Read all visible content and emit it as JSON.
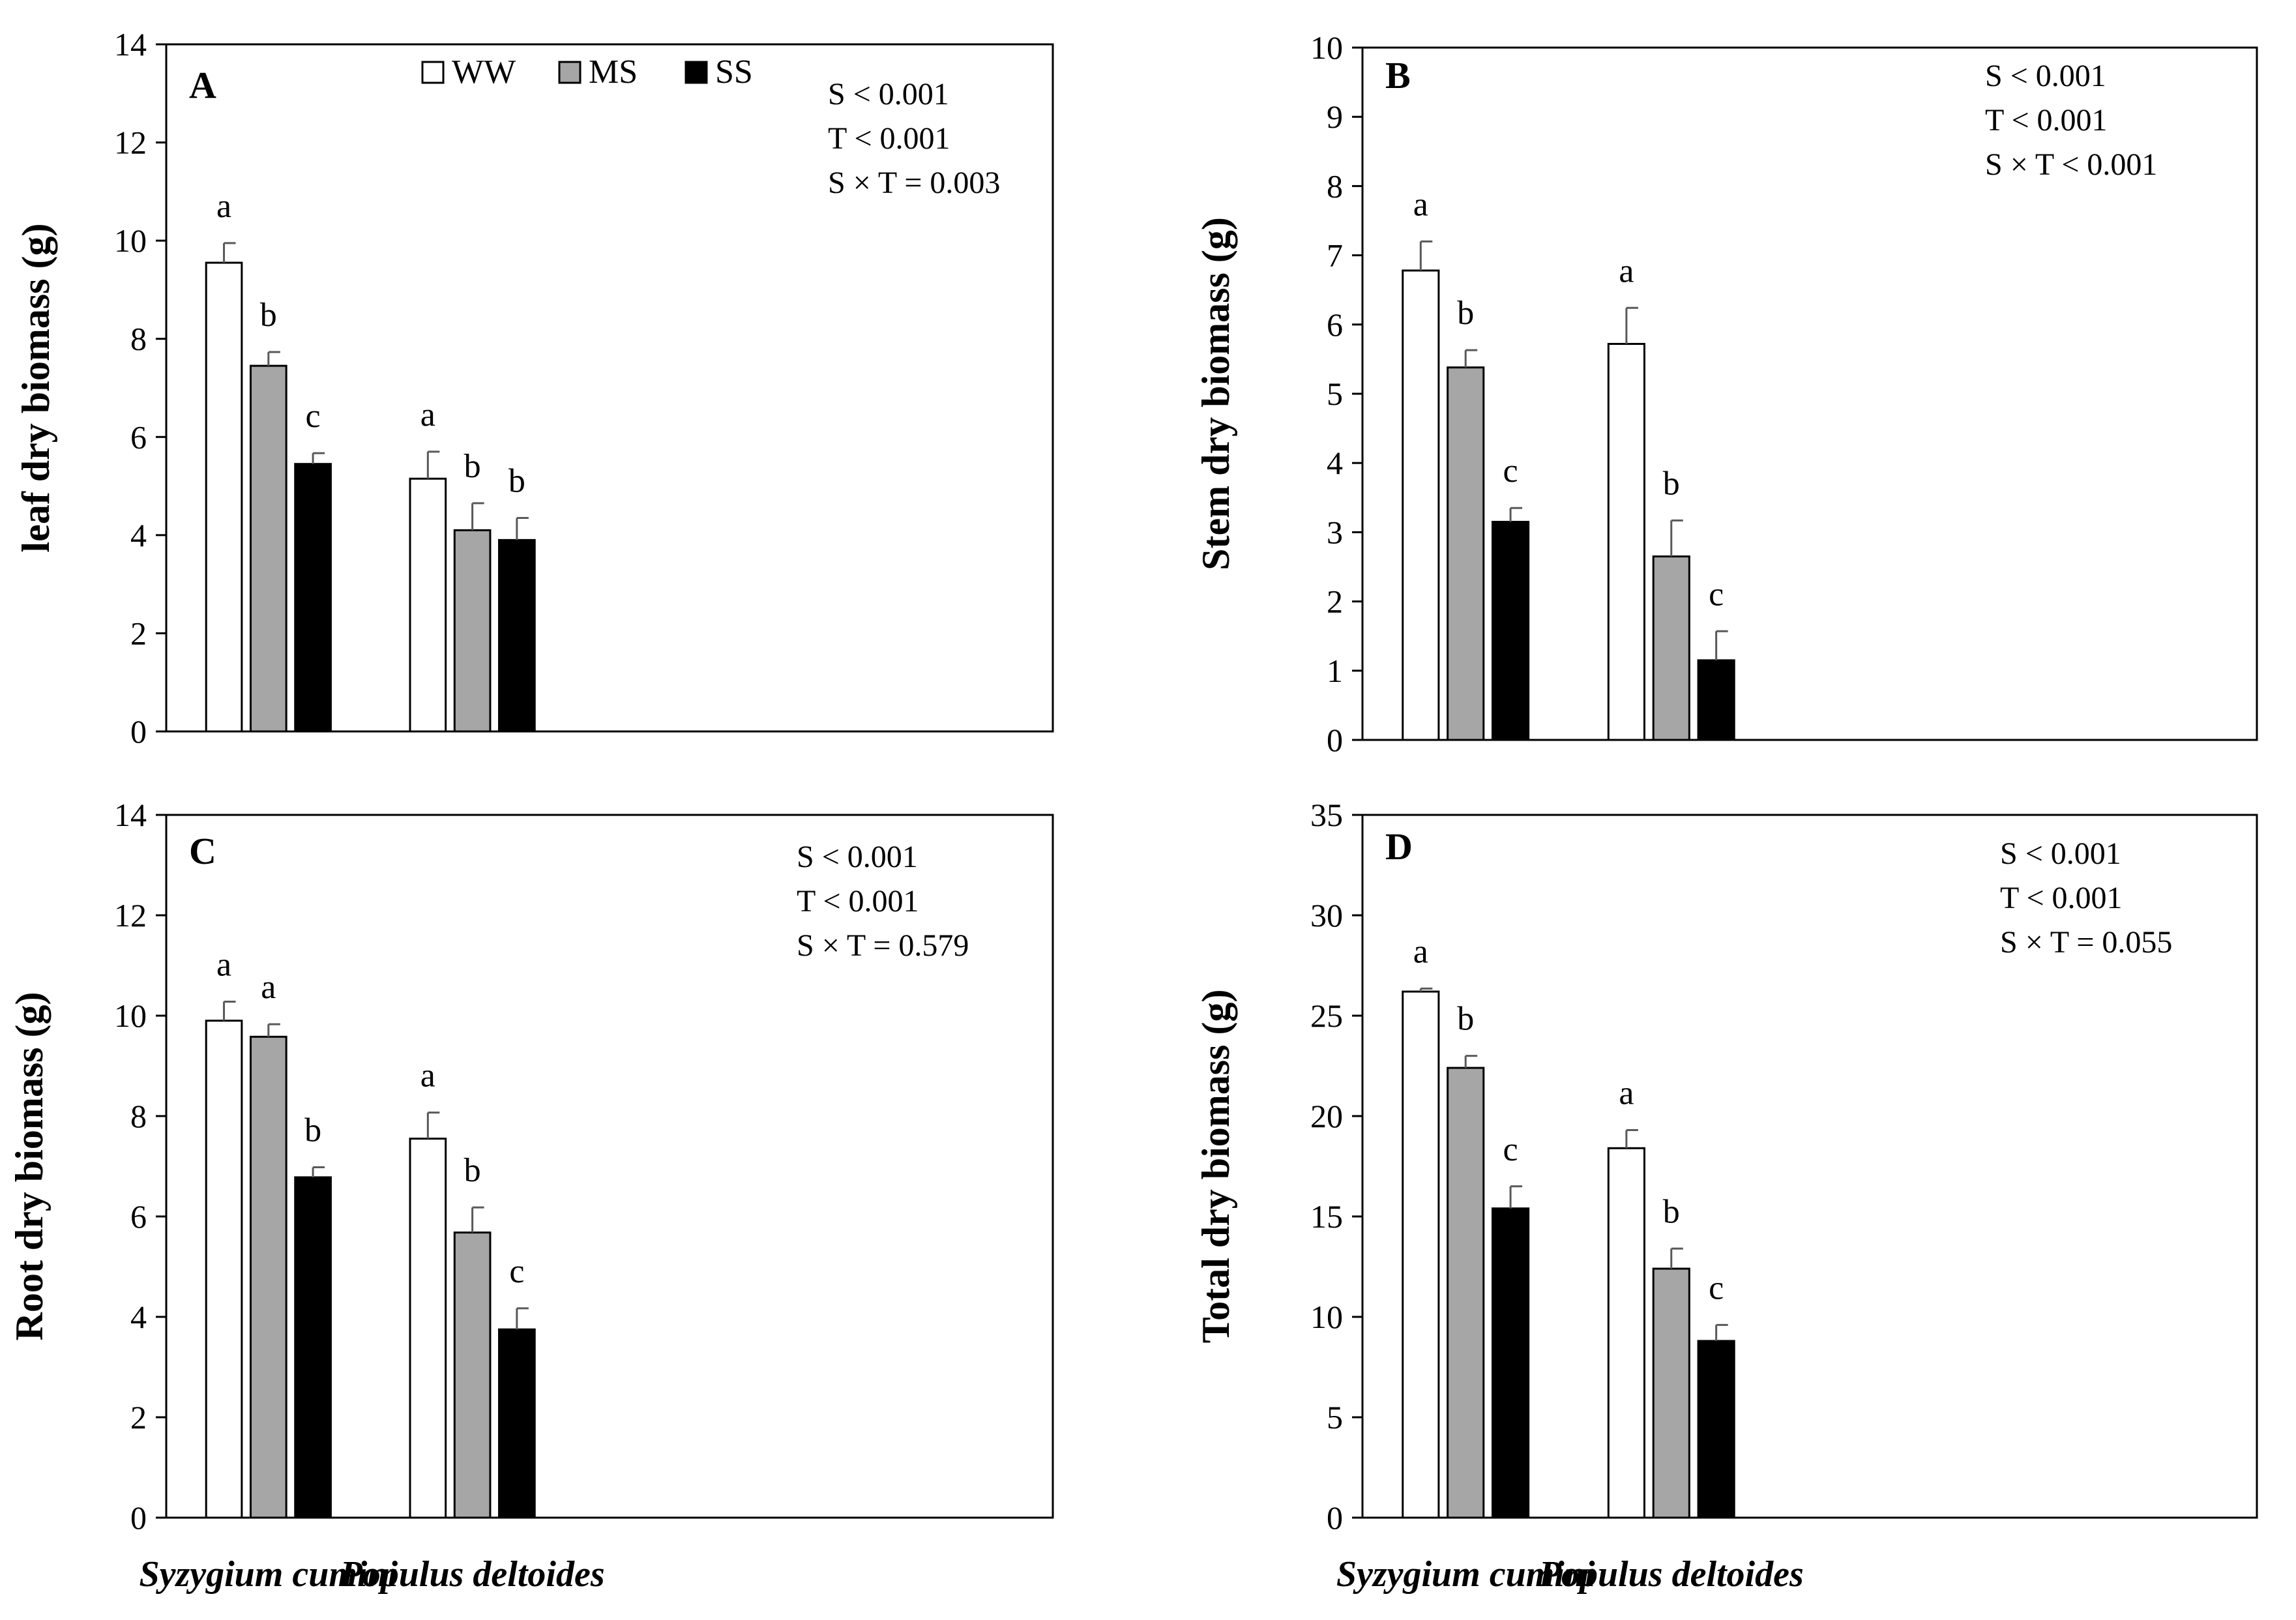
{
  "colors": {
    "WW": "#ffffff",
    "MS": "#a6a6a6",
    "SS": "#000000",
    "axis": "#000000",
    "error_bar": "#595959"
  },
  "legend": {
    "items": [
      {
        "name": "WW",
        "color": "#ffffff"
      },
      {
        "name": "MS",
        "color": "#a6a6a6"
      },
      {
        "name": "SS",
        "color": "#000000"
      }
    ]
  },
  "chart_data": [
    {
      "panel": "A",
      "type": "bar",
      "ylabel": "leaf dry biomass (g)",
      "ylim": [
        0,
        14
      ],
      "yticks": [
        0,
        2,
        4,
        6,
        8,
        10,
        12,
        14
      ],
      "categories": [
        "Syzygium cumini",
        "Populus deltoides"
      ],
      "series": [
        {
          "name": "WW",
          "values": [
            9.55,
            5.15
          ],
          "errors": [
            0.4,
            0.55
          ],
          "letters": [
            "a",
            "a"
          ]
        },
        {
          "name": "MS",
          "values": [
            7.45,
            4.1
          ],
          "errors": [
            0.28,
            0.55
          ],
          "letters": [
            "b",
            "b"
          ]
        },
        {
          "name": "SS",
          "values": [
            5.45,
            3.9
          ],
          "errors": [
            0.22,
            0.45
          ],
          "letters": [
            "c",
            "b"
          ]
        }
      ],
      "stats": [
        "S < 0.001",
        "T < 0.001",
        "S × T = 0.003"
      ],
      "legend": "top-center",
      "grid": false
    },
    {
      "panel": "B",
      "type": "bar",
      "ylabel": "Stem dry biomass (g)",
      "ylim": [
        0,
        10
      ],
      "yticks": [
        0,
        1,
        2,
        3,
        4,
        5,
        6,
        7,
        8,
        9,
        10
      ],
      "categories": [
        "Syzygium cumini",
        "Populus deltoides"
      ],
      "series": [
        {
          "name": "WW",
          "values": [
            6.78,
            5.72
          ],
          "errors": [
            0.42,
            0.52
          ],
          "letters": [
            "a",
            "a"
          ]
        },
        {
          "name": "MS",
          "values": [
            5.38,
            2.65
          ],
          "errors": [
            0.25,
            0.52
          ],
          "letters": [
            "b",
            "b"
          ]
        },
        {
          "name": "SS",
          "values": [
            3.15,
            1.15
          ],
          "errors": [
            0.2,
            0.42
          ],
          "letters": [
            "c",
            "c"
          ]
        }
      ],
      "stats": [
        "S < 0.001",
        "T < 0.001",
        "S × T < 0.001"
      ],
      "grid": false
    },
    {
      "panel": "C",
      "type": "bar",
      "ylabel": "Root dry biomass (g)",
      "ylim": [
        0,
        14
      ],
      "yticks": [
        0,
        2,
        4,
        6,
        8,
        10,
        12,
        14
      ],
      "categories": [
        "Syzygium cumini",
        "Populus deltoides"
      ],
      "series": [
        {
          "name": "WW",
          "values": [
            9.9,
            7.55
          ],
          "errors": [
            0.38,
            0.52
          ],
          "letters": [
            "a",
            "a"
          ]
        },
        {
          "name": "MS",
          "values": [
            9.58,
            5.68
          ],
          "errors": [
            0.25,
            0.5
          ],
          "letters": [
            "a",
            "b"
          ]
        },
        {
          "name": "SS",
          "values": [
            6.78,
            3.75
          ],
          "errors": [
            0.2,
            0.42
          ],
          "letters": [
            "b",
            "c"
          ]
        }
      ],
      "stats": [
        "S < 0.001",
        "T < 0.001",
        "S × T = 0.579"
      ],
      "grid": false
    },
    {
      "panel": "D",
      "type": "bar",
      "ylabel": "Total dry biomass (g)",
      "ylim": [
        0,
        35
      ],
      "yticks": [
        0,
        5,
        10,
        15,
        20,
        25,
        30,
        35
      ],
      "categories": [
        "Syzygium cumini",
        "Populus deltoides"
      ],
      "series": [
        {
          "name": "WW",
          "values": [
            26.2,
            18.4
          ],
          "errors": [
            0.15,
            0.9
          ],
          "letters": [
            "a",
            "a"
          ]
        },
        {
          "name": "MS",
          "values": [
            22.4,
            12.4
          ],
          "errors": [
            0.6,
            1.0
          ],
          "letters": [
            "b",
            "b"
          ]
        },
        {
          "name": "SS",
          "values": [
            15.4,
            8.8
          ],
          "errors": [
            1.1,
            0.8
          ],
          "letters": [
            "c",
            "c"
          ]
        }
      ],
      "stats": [
        "S < 0.001",
        "T < 0.001",
        "S × T = 0.055"
      ],
      "grid": false
    }
  ]
}
